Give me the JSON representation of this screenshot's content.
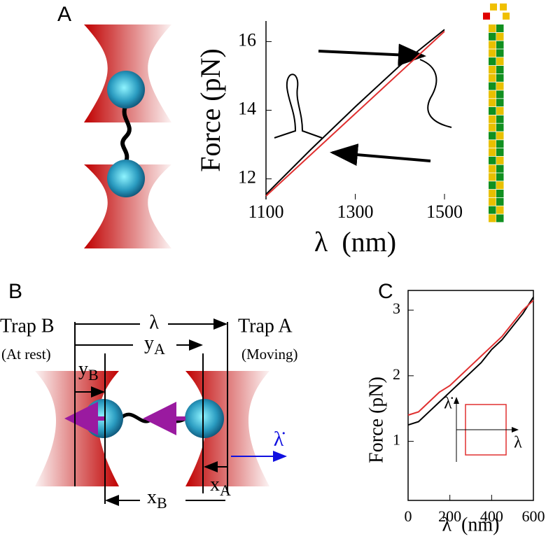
{
  "panel_labels": [
    "A",
    "B",
    "C"
  ],
  "panel_b": {
    "trap_b": "Trap B",
    "trap_b_state": "(At rest)",
    "trap_a": "Trap A",
    "trap_a_state": "(Moving)",
    "lambda": "λ",
    "lambda_dot": "λ̇",
    "y_a": {
      "main": "y",
      "sub": "A"
    },
    "y_b": {
      "main": "y",
      "sub": "B"
    },
    "x_a": {
      "main": "x",
      "sub": "A"
    },
    "x_b": {
      "main": "x",
      "sub": "B"
    }
  },
  "chart_data": [
    {
      "type": "line",
      "x_label": "λ  (nm)",
      "y_label": "Force (pN)",
      "x": [
        1100,
        1200,
        1300,
        1400,
        1500
      ],
      "series": [
        {
          "color": "#000000",
          "values": [
            11.55,
            12.85,
            14.1,
            15.3,
            16.35
          ]
        },
        {
          "color": "#e03030",
          "values": [
            11.5,
            12.7,
            13.9,
            15.1,
            16.3
          ]
        }
      ],
      "xlim": [
        1100,
        1500
      ],
      "ylim": [
        11.4,
        16.6
      ],
      "xticks": [
        1100,
        1300,
        1500
      ],
      "yticks": [
        12,
        14,
        16
      ]
    },
    {
      "type": "line",
      "x_label": "λ  (nm)",
      "y_label": "Force (pN)",
      "x": [
        0,
        50,
        100,
        150,
        200,
        250,
        300,
        350,
        400,
        450,
        500,
        550,
        600
      ],
      "series": [
        {
          "color": "#000000",
          "values": [
            1.25,
            1.3,
            1.45,
            1.6,
            1.75,
            1.9,
            2.05,
            2.2,
            2.4,
            2.55,
            2.75,
            2.95,
            3.2
          ]
        },
        {
          "color": "#e03030",
          "values": [
            1.4,
            1.45,
            1.6,
            1.75,
            1.85,
            2.0,
            2.15,
            2.3,
            2.45,
            2.6,
            2.8,
            3.0,
            3.15
          ]
        }
      ],
      "xlim": [
        0,
        600
      ],
      "ylim": [
        0.1,
        3.3
      ],
      "xticks": [
        0,
        200,
        400,
        600
      ],
      "yticks": [
        1,
        2,
        3
      ],
      "inset_labels": [
        "λ̇",
        "λ"
      ]
    }
  ]
}
